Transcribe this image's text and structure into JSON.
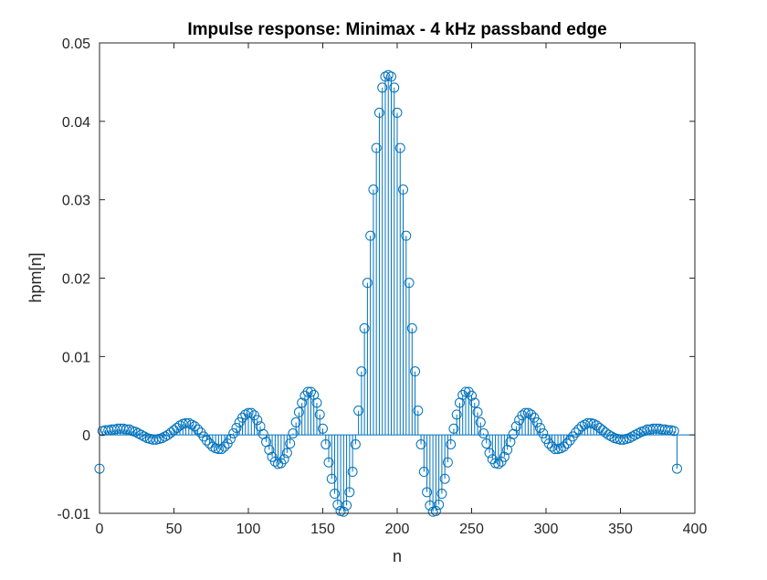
{
  "chart_data": {
    "type": "stem",
    "title": "Impulse response: Minimax - 4 kHz passband edge",
    "xlabel": "n",
    "ylabel": "hpm[n]",
    "xlim": [
      0,
      400
    ],
    "ylim": [
      -0.01,
      0.05
    ],
    "x_ticks": [
      "0",
      "50",
      "100",
      "150",
      "200",
      "250",
      "300",
      "350",
      "400"
    ],
    "y_ticks": [
      "-0.01",
      "0",
      "0.01",
      "0.02",
      "0.03",
      "0.04",
      "0.05"
    ],
    "marker": "open-circle",
    "box": true,
    "grid": false,
    "series_color": "#0072BD",
    "x_start": 0,
    "x_step": 2,
    "values": [
      -0.0043,
      0.0005,
      0.0006,
      0.0006,
      0.0007,
      0.0007,
      0.0008,
      0.0008,
      0.0008,
      0.0007,
      0.0007,
      0.0005,
      0.0004,
      0.0002,
      0.0,
      -0.0002,
      -0.0004,
      -0.0005,
      -0.0006,
      -0.0006,
      -0.0005,
      -0.0004,
      -0.0002,
      0.0,
      0.0003,
      0.0006,
      0.0009,
      0.0012,
      0.0014,
      0.0015,
      0.0015,
      0.0013,
      0.0011,
      0.0007,
      0.0003,
      -0.0002,
      -0.0007,
      -0.0011,
      -0.0015,
      -0.0017,
      -0.0018,
      -0.0018,
      -0.0015,
      -0.0011,
      -0.0005,
      0.0002,
      0.0009,
      0.0016,
      0.0022,
      0.0026,
      0.0028,
      0.0028,
      0.0025,
      0.0019,
      0.0011,
      0.0001,
      -0.0009,
      -0.0019,
      -0.0028,
      -0.0034,
      -0.0037,
      -0.0036,
      -0.0031,
      -0.0023,
      -0.0011,
      0.0002,
      0.0016,
      0.0029,
      0.0041,
      0.005,
      0.0055,
      0.0055,
      0.0051,
      0.0041,
      0.0026,
      0.0008,
      -0.0012,
      -0.0035,
      -0.0056,
      -0.0075,
      -0.0089,
      -0.0097,
      -0.0098,
      -0.009,
      -0.0073,
      -0.0047,
      -0.0012,
      0.0031,
      0.0081,
      0.0136,
      0.0194,
      0.0254,
      0.0313,
      0.0366,
      0.0411,
      0.0443,
      0.0457,
      0.0459,
      0.0457,
      0.0443,
      0.0411,
      0.0366,
      0.0313,
      0.0254,
      0.0194,
      0.0136,
      0.0081,
      0.0031,
      -0.0012,
      -0.0047,
      -0.0073,
      -0.009,
      -0.0098,
      -0.0097,
      -0.0089,
      -0.0075,
      -0.0056,
      -0.0035,
      -0.0012,
      0.0008,
      0.0026,
      0.0041,
      0.0051,
      0.0055,
      0.0055,
      0.005,
      0.0041,
      0.0029,
      0.0016,
      0.0002,
      -0.0011,
      -0.0023,
      -0.0031,
      -0.0036,
      -0.0037,
      -0.0034,
      -0.0028,
      -0.0019,
      -0.0009,
      0.0001,
      0.0011,
      0.0019,
      0.0025,
      0.0028,
      0.0028,
      0.0026,
      0.0022,
      0.0016,
      0.0009,
      0.0002,
      -0.0005,
      -0.0011,
      -0.0015,
      -0.0018,
      -0.0018,
      -0.0017,
      -0.0015,
      -0.0011,
      -0.0007,
      -0.0002,
      0.0003,
      0.0007,
      0.0011,
      0.0013,
      0.0015,
      0.0015,
      0.0014,
      0.0012,
      0.0009,
      0.0006,
      0.0003,
      0.0,
      -0.0002,
      -0.0004,
      -0.0005,
      -0.0006,
      -0.0006,
      -0.0005,
      -0.0004,
      -0.0002,
      0.0,
      0.0002,
      0.0004,
      0.0005,
      0.0007,
      0.0007,
      0.0008,
      0.0008,
      0.0008,
      0.0007,
      0.0007,
      0.0006,
      0.0006,
      0.0005,
      -0.0043
    ]
  }
}
